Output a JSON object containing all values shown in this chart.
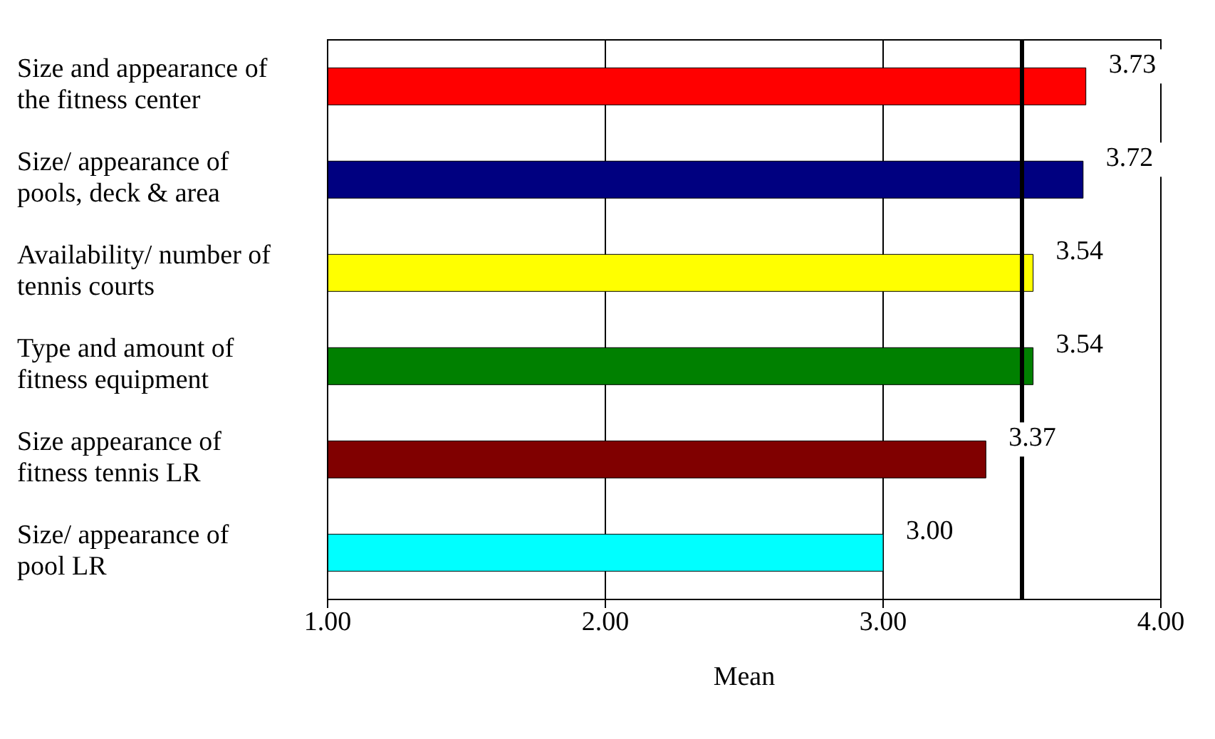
{
  "chart_data": {
    "type": "bar",
    "orientation": "horizontal",
    "categories": [
      "Size and appearance of the fitness center",
      "Size/ appearance of pools, deck & area",
      "Availability/ number of tennis courts",
      "Type and amount of fitness equipment",
      "Size appearance of fitness tennis LR",
      "Size/ appearance of pool LR"
    ],
    "values": [
      3.73,
      3.72,
      3.54,
      3.54,
      3.37,
      3.0
    ],
    "value_labels": [
      "3.73",
      "3.72",
      "3.54",
      "3.54",
      "3.37",
      "3.00"
    ],
    "colors": [
      "#ff0000",
      "#000080",
      "#ffff00",
      "#008000",
      "#800000",
      "#00ffff"
    ],
    "xlabel": "Mean",
    "xlim": [
      1,
      4
    ],
    "xticks": [
      {
        "value": 1,
        "label": "1.00"
      },
      {
        "value": 2,
        "label": "2.00"
      },
      {
        "value": 3,
        "label": "3.00"
      },
      {
        "value": 4,
        "label": "4.00"
      }
    ],
    "grid": "x",
    "ref_lines": [
      {
        "axis": "x",
        "value": 3.5,
        "color": "#000000"
      }
    ]
  }
}
